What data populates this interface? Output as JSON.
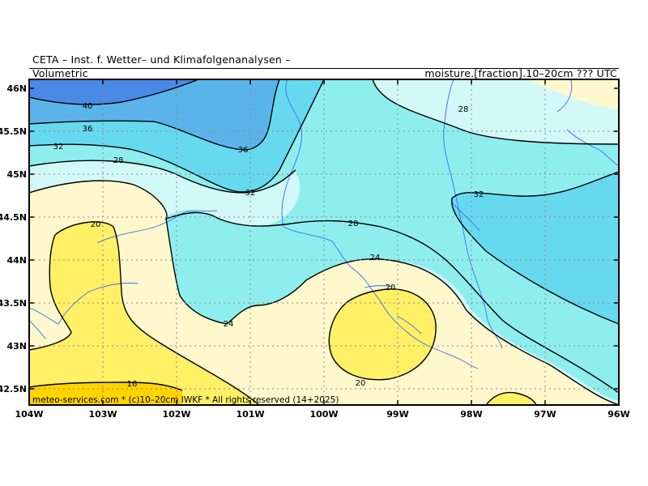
{
  "header": {
    "title_line": "CETA – Inst. f. Wetter– und Klimafolgenanalysen –",
    "left_label": "Volumetric",
    "right_label": "moisture.[fraction].10–20cm ??? UTC"
  },
  "footer": {
    "credit": "meteo-services.com * (c)10–20cm IWKF * All rights reserved (14+2025)"
  },
  "axes": {
    "lat_ticks": [
      "46N",
      "45.5N",
      "45N",
      "44.5N",
      "44N",
      "43.5N",
      "43N",
      "42.5N"
    ],
    "lon_ticks": [
      "104W",
      "103W",
      "102W",
      "101W",
      "100W",
      "99W",
      "98W",
      "97W",
      "96W"
    ]
  },
  "contour_labels": [
    {
      "text": "40"
    },
    {
      "text": "36"
    },
    {
      "text": "32"
    },
    {
      "text": "28"
    },
    {
      "text": "36"
    },
    {
      "text": "32"
    },
    {
      "text": "28"
    },
    {
      "text": "32"
    },
    {
      "text": "28"
    },
    {
      "text": "24"
    },
    {
      "text": "20"
    },
    {
      "text": "24"
    },
    {
      "text": "20"
    },
    {
      "text": "20"
    },
    {
      "text": "16"
    }
  ],
  "colors": {
    "c16": "#ffd400",
    "c20": "#fff066",
    "c24": "#fff8cc",
    "c28": "#d3f8f8",
    "c32": "#8eeeee",
    "c36": "#66d9ef",
    "c40": "#5ab4ea",
    "c44": "#4a8ae6",
    "river": "#3b6df0",
    "contour": "#000000",
    "grid": "#888888"
  }
}
